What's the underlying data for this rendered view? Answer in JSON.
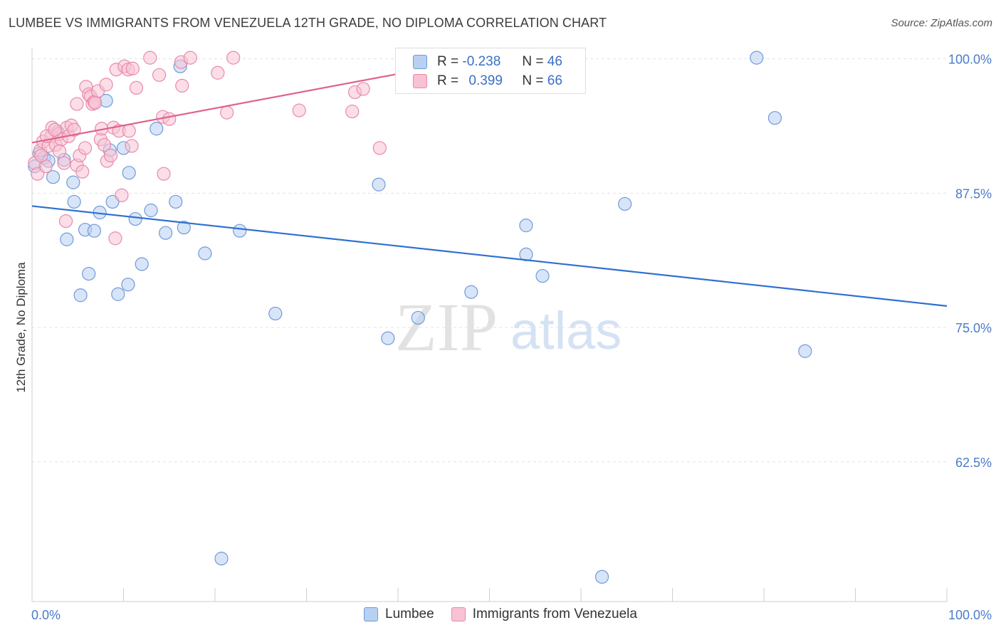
{
  "header": {
    "title": "LUMBEE VS IMMIGRANTS FROM VENEZUELA 12TH GRADE, NO DIPLOMA CORRELATION CHART",
    "source": "Source: ZipAtlas.com"
  },
  "watermark": {
    "zip": "ZIP",
    "atlas": "atlas"
  },
  "stats": {
    "r_label": "R =",
    "n_label": "N =",
    "rows": [
      {
        "r": "-0.238",
        "n": "46"
      },
      {
        "r": "0.399",
        "n": "66"
      }
    ]
  },
  "legend": {
    "items": [
      "Lumbee",
      "Immigrants from Venezuela"
    ]
  },
  "colors": {
    "lumbee_fill": "#b8d0f2",
    "lumbee_stroke": "#6f9ad8",
    "lumbee_line": "#2f6fd1",
    "venezuela_fill": "#f8c2d4",
    "venezuela_stroke": "#e88aab",
    "venezuela_line": "#e0628c",
    "tick_label": "#4a7bc8",
    "grid": "#e3e3e3"
  },
  "chart_data": {
    "type": "scatter",
    "title": "LUMBEE VS IMMIGRANTS FROM VENEZUELA 12TH GRADE, NO DIPLOMA CORRELATION CHART",
    "xlabel": "",
    "ylabel": "12th Grade, No Diploma",
    "xlim": [
      0,
      100
    ],
    "ylim": [
      49.5,
      101.5
    ],
    "x_tick_labels": [
      "0.0%",
      "100.0%"
    ],
    "y_ticks": [
      62.5,
      75.0,
      87.5,
      100.0
    ],
    "y_tick_labels": [
      "62.5%",
      "75.0%",
      "87.5%",
      "100.0%"
    ],
    "grid": true,
    "legend_position": "bottom-center",
    "series": [
      {
        "name": "Lumbee",
        "r": -0.238,
        "n": 46,
        "trend": {
          "x": [
            0,
            100
          ],
          "y": [
            86.3,
            77.0
          ]
        },
        "points": [
          [
            0.3,
            90.0
          ],
          [
            0.8,
            91.2
          ],
          [
            1.3,
            90.8
          ],
          [
            1.8,
            90.5
          ],
          [
            2.3,
            89.0
          ],
          [
            2.8,
            93.2
          ],
          [
            3.5,
            90.6
          ],
          [
            4.5,
            88.5
          ],
          [
            3.8,
            83.2
          ],
          [
            4.6,
            86.7
          ],
          [
            5.8,
            84.1
          ],
          [
            6.8,
            84.0
          ],
          [
            7.4,
            85.7
          ],
          [
            6.2,
            80.0
          ],
          [
            5.3,
            78.0
          ],
          [
            8.1,
            96.1
          ],
          [
            8.5,
            91.5
          ],
          [
            8.8,
            86.7
          ],
          [
            9.4,
            78.1
          ],
          [
            10.0,
            91.7
          ],
          [
            10.5,
            79.0
          ],
          [
            10.6,
            89.4
          ],
          [
            11.3,
            85.1
          ],
          [
            12.0,
            80.9
          ],
          [
            13.0,
            85.9
          ],
          [
            13.6,
            93.5
          ],
          [
            14.6,
            83.8
          ],
          [
            15.7,
            86.7
          ],
          [
            16.2,
            99.3
          ],
          [
            16.6,
            84.3
          ],
          [
            18.9,
            81.9
          ],
          [
            20.7,
            53.5
          ],
          [
            22.7,
            84.0
          ],
          [
            26.6,
            76.3
          ],
          [
            37.9,
            88.3
          ],
          [
            38.9,
            74.0
          ],
          [
            42.2,
            75.9
          ],
          [
            48.0,
            78.3
          ],
          [
            54.0,
            84.5
          ],
          [
            54.0,
            81.8
          ],
          [
            55.8,
            79.8
          ],
          [
            62.3,
            51.8
          ],
          [
            64.8,
            86.5
          ],
          [
            79.2,
            100.1
          ],
          [
            81.2,
            94.5
          ],
          [
            84.5,
            72.8
          ]
        ]
      },
      {
        "name": "Immigrants from Venezuela",
        "r": 0.399,
        "n": 66,
        "trend": {
          "x": [
            0,
            40
          ],
          "y": [
            92.2,
            98.6
          ]
        },
        "points": [
          [
            0.3,
            90.3
          ],
          [
            0.6,
            89.3
          ],
          [
            0.9,
            91.5
          ],
          [
            1.2,
            92.3
          ],
          [
            1.5,
            90.0
          ],
          [
            1.8,
            91.9
          ],
          [
            2.1,
            92.8
          ],
          [
            2.2,
            93.6
          ],
          [
            2.6,
            92.0
          ],
          [
            2.9,
            93.0
          ],
          [
            3.2,
            92.5
          ],
          [
            3.5,
            90.3
          ],
          [
            3.8,
            93.6
          ],
          [
            4.0,
            92.8
          ],
          [
            4.3,
            93.8
          ],
          [
            4.6,
            93.4
          ],
          [
            4.9,
            90.1
          ],
          [
            5.2,
            91.0
          ],
          [
            5.5,
            89.5
          ],
          [
            5.8,
            91.7
          ],
          [
            4.9,
            95.8
          ],
          [
            5.9,
            97.4
          ],
          [
            6.2,
            96.7
          ],
          [
            6.4,
            96.5
          ],
          [
            6.6,
            95.8
          ],
          [
            6.8,
            96.0
          ],
          [
            7.2,
            97.0
          ],
          [
            7.5,
            92.5
          ],
          [
            7.9,
            92.0
          ],
          [
            8.1,
            97.6
          ],
          [
            8.2,
            90.5
          ],
          [
            8.6,
            91.0
          ],
          [
            8.9,
            93.6
          ],
          [
            9.2,
            99.0
          ],
          [
            9.5,
            93.3
          ],
          [
            9.8,
            87.3
          ],
          [
            10.1,
            99.3
          ],
          [
            10.5,
            99.0
          ],
          [
            10.6,
            93.3
          ],
          [
            10.9,
            91.9
          ],
          [
            11.4,
            97.3
          ],
          [
            3.7,
            84.9
          ],
          [
            9.1,
            83.3
          ],
          [
            12.9,
            100.1
          ],
          [
            13.9,
            98.5
          ],
          [
            14.3,
            94.6
          ],
          [
            14.4,
            89.3
          ],
          [
            16.3,
            99.7
          ],
          [
            16.4,
            97.5
          ],
          [
            17.3,
            100.1
          ],
          [
            20.3,
            98.7
          ],
          [
            21.3,
            95.0
          ],
          [
            22.0,
            100.1
          ],
          [
            29.2,
            95.2
          ],
          [
            35.0,
            95.1
          ],
          [
            35.3,
            96.9
          ],
          [
            36.2,
            97.2
          ],
          [
            38.0,
            91.7
          ],
          [
            1.0,
            91.0
          ],
          [
            1.6,
            92.8
          ],
          [
            2.5,
            93.4
          ],
          [
            6.9,
            95.9
          ],
          [
            11.0,
            99.1
          ],
          [
            15.0,
            94.4
          ],
          [
            3.0,
            91.4
          ],
          [
            7.6,
            93.5
          ]
        ]
      }
    ]
  }
}
